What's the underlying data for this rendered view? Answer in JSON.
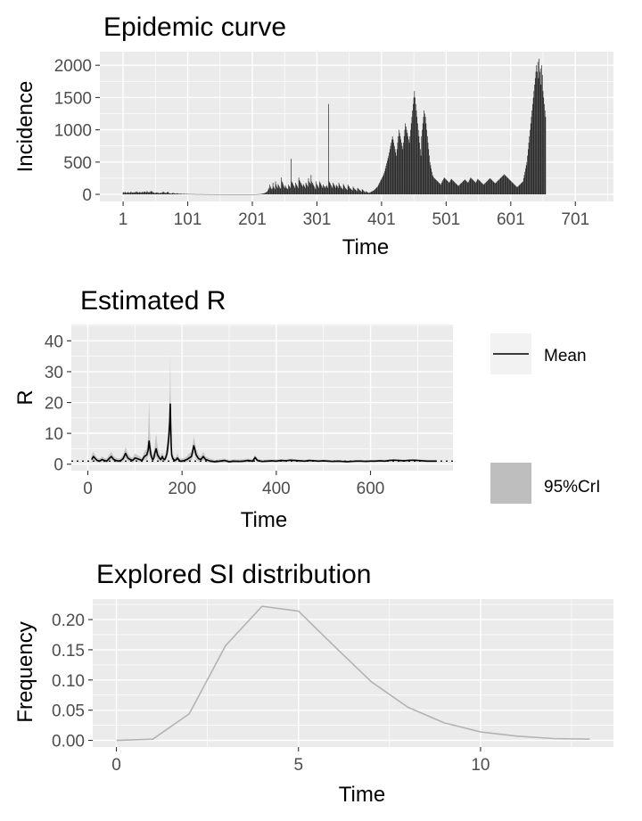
{
  "chart_data": [
    {
      "type": "bar",
      "title": "Epidemic curve",
      "xlabel": "Time",
      "ylabel": "Incidence",
      "xlim": [
        -35,
        760
      ],
      "ylim": [
        -110,
        2210
      ],
      "xticks": [
        1,
        101,
        201,
        301,
        401,
        501,
        601,
        701
      ],
      "xtick_labels": [
        "1",
        "101",
        "201",
        "301",
        "401",
        "501",
        "601",
        "701"
      ],
      "yticks": [
        0,
        500,
        1000,
        1500,
        2000
      ],
      "ytick_labels": [
        "0",
        "500",
        "1000",
        "1500",
        "2000"
      ],
      "grid": true,
      "bar_color": "#1a1a1a",
      "x_start": 1,
      "values": [
        30,
        35,
        25,
        40,
        30,
        20,
        25,
        35,
        30,
        28,
        22,
        30,
        40,
        35,
        30,
        25,
        30,
        28,
        35,
        30,
        40,
        45,
        35,
        30,
        28,
        32,
        38,
        30,
        25,
        35,
        40,
        30,
        35,
        45,
        40,
        35,
        30,
        50,
        40,
        35,
        30,
        35,
        40,
        45,
        55,
        40,
        35,
        30,
        25,
        20,
        22,
        25,
        30,
        28,
        25,
        20,
        18,
        22,
        25,
        20,
        25,
        30,
        45,
        35,
        30,
        25,
        20,
        25,
        30,
        40,
        35,
        20,
        18,
        15,
        12,
        15,
        18,
        20,
        22,
        18,
        15,
        12,
        10,
        15,
        18,
        12,
        10,
        8,
        10,
        12,
        10,
        8,
        6,
        8,
        10,
        8,
        6,
        5,
        6,
        8,
        6,
        5,
        4,
        5,
        6,
        5,
        4,
        3,
        4,
        5,
        4,
        3,
        2,
        3,
        4,
        3,
        2,
        2,
        3,
        4,
        3,
        2,
        2,
        2,
        3,
        2,
        2,
        1,
        2,
        2,
        3,
        2,
        1,
        1,
        2,
        1,
        2,
        1,
        1,
        1,
        2,
        1,
        1,
        0,
        1,
        1,
        0,
        1,
        0,
        1,
        0,
        0,
        1,
        0,
        1,
        0,
        0,
        0,
        1,
        0,
        0,
        0,
        1,
        0,
        0,
        0,
        0,
        0,
        0,
        1,
        0,
        0,
        0,
        0,
        0,
        0,
        0,
        0,
        0,
        0,
        1,
        0,
        0,
        0,
        0,
        0,
        0,
        1,
        0,
        0,
        0,
        0,
        0,
        1,
        0,
        0,
        0,
        0,
        0,
        0,
        1,
        0,
        0,
        0,
        1,
        1,
        1,
        2,
        2,
        3,
        3,
        4,
        5,
        6,
        8,
        10,
        12,
        14,
        16,
        20,
        24,
        30,
        35,
        45,
        60,
        80,
        100,
        150,
        120,
        100,
        80,
        90,
        180,
        120,
        100,
        80,
        200,
        150,
        120,
        100,
        160,
        140,
        120,
        100,
        90,
        260,
        200,
        180,
        150,
        120,
        100,
        140,
        120,
        100,
        90,
        80,
        150,
        130,
        120,
        100,
        550,
        200,
        180,
        160,
        140,
        120,
        100,
        180,
        160,
        140,
        120,
        100,
        260,
        220,
        200,
        180,
        160,
        140,
        120,
        160,
        140,
        120,
        100,
        180,
        160,
        140,
        120,
        250,
        200,
        180,
        160,
        300,
        200,
        180,
        160,
        140,
        120,
        100,
        80,
        200,
        160,
        140,
        120,
        100,
        200,
        180,
        160,
        140,
        120,
        100,
        150,
        130,
        120,
        100,
        120,
        140,
        120,
        100,
        1400,
        200,
        180,
        160,
        140,
        120,
        100,
        180,
        160,
        140,
        120,
        100,
        150,
        130,
        120,
        100,
        180,
        150,
        130,
        120,
        100,
        90,
        80,
        160,
        140,
        120,
        100,
        90,
        80,
        70,
        150,
        130,
        120,
        100,
        90,
        80,
        70,
        60,
        120,
        100,
        90,
        80,
        70,
        60,
        50,
        100,
        90,
        80,
        70,
        60,
        50,
        40,
        80,
        70,
        60,
        50,
        40,
        30,
        50,
        40,
        35,
        30,
        25,
        20,
        30,
        35,
        40,
        45,
        50,
        55,
        60,
        70,
        80,
        90,
        100,
        110,
        120,
        140,
        160,
        180,
        200,
        220,
        240,
        260,
        280,
        300,
        330,
        360,
        400,
        440,
        480,
        520,
        560,
        600,
        650,
        700,
        750,
        800,
        850,
        900,
        850,
        800,
        750,
        700,
        650,
        600,
        700,
        800,
        900,
        1000,
        950,
        900,
        850,
        800,
        750,
        700,
        800,
        900,
        1000,
        1100,
        1050,
        1000,
        950,
        900,
        850,
        800,
        900,
        1000,
        1100,
        1200,
        1300,
        1400,
        1500,
        1600,
        1500,
        1400,
        1300,
        1200,
        1100,
        1000,
        900,
        800,
        700,
        600,
        900,
        1000,
        1100,
        1200,
        1300,
        1250,
        1200,
        1100,
        1000,
        900,
        800,
        700,
        600,
        500,
        450,
        400,
        350,
        300,
        280,
        260,
        250,
        240,
        230,
        220,
        210,
        200,
        190,
        180,
        170,
        160,
        150,
        180,
        200,
        220,
        240,
        260,
        250,
        240,
        230,
        220,
        210,
        200,
        190,
        180,
        200,
        220,
        240,
        230,
        220,
        210,
        200,
        190,
        180,
        170,
        160,
        150,
        140,
        130,
        140,
        150,
        160,
        170,
        180,
        190,
        200,
        210,
        220,
        230,
        220,
        210,
        200,
        190,
        180,
        200,
        220,
        240,
        260,
        250,
        240,
        230,
        220,
        210,
        200,
        190,
        180,
        200,
        220,
        240,
        230,
        220,
        210,
        200,
        190,
        180,
        170,
        160,
        150,
        160,
        170,
        180,
        190,
        200,
        210,
        220,
        230,
        240,
        250,
        240,
        230,
        220,
        210,
        200,
        190,
        180,
        170,
        180,
        190,
        200,
        210,
        220,
        230,
        240,
        250,
        260,
        270,
        280,
        290,
        300,
        310,
        300,
        290,
        280,
        270,
        260,
        250,
        240,
        230,
        220,
        210,
        200,
        190,
        180,
        170,
        160,
        150,
        140,
        130,
        120,
        110,
        120,
        130,
        140,
        150,
        160,
        170,
        180,
        190,
        200,
        250,
        300,
        350,
        400,
        450,
        500,
        600,
        700,
        800,
        900,
        1000,
        1100,
        1200,
        1300,
        1400,
        1500,
        1600,
        1700,
        1800,
        1900,
        2000,
        1900,
        2050,
        1800,
        2100,
        1900,
        1950,
        1700,
        2000,
        1850,
        1600,
        1500,
        1400,
        1300,
        1200
      ],
      "annotations": []
    },
    {
      "type": "line",
      "title": "Estimated R",
      "xlabel": "Time",
      "ylabel": "R",
      "xlim": [
        -35,
        775
      ],
      "ylim": [
        -2.1,
        45.3
      ],
      "xticks": [
        0,
        200,
        400,
        600
      ],
      "xtick_labels": [
        "0",
        "200",
        "400",
        "600"
      ],
      "yticks": [
        0,
        10,
        20,
        30,
        40
      ],
      "ytick_labels": [
        "0",
        "10",
        "20",
        "30",
        "40"
      ],
      "grid": true,
      "reference_line_y": 1,
      "series": [
        {
          "name": "Mean",
          "color": "#000000",
          "x": [
            8,
            12,
            16,
            20,
            25,
            30,
            35,
            40,
            45,
            50,
            55,
            60,
            65,
            70,
            75,
            80,
            85,
            90,
            95,
            100,
            105,
            110,
            115,
            120,
            125,
            128,
            130,
            132,
            134,
            136,
            138,
            140,
            142,
            145,
            148,
            150,
            152,
            155,
            158,
            160,
            163,
            165,
            168,
            170,
            172,
            174,
            175,
            176,
            177,
            178,
            180,
            182,
            185,
            188,
            190,
            193,
            196,
            200,
            205,
            210,
            215,
            220,
            225,
            230,
            235,
            240,
            245,
            250,
            260,
            270,
            280,
            290,
            300,
            310,
            320,
            330,
            340,
            350,
            355,
            360,
            370,
            380,
            390,
            400,
            410,
            420,
            430,
            440,
            450,
            460,
            470,
            480,
            490,
            500,
            510,
            520,
            530,
            540,
            550,
            560,
            570,
            580,
            590,
            600,
            610,
            620,
            630,
            640,
            650,
            660,
            670,
            680,
            690,
            700,
            710,
            720,
            730,
            740
          ],
          "y": [
            1.5,
            2.5,
            1.8,
            1.2,
            1.0,
            1.5,
            1.2,
            1.0,
            1.8,
            2.5,
            1.5,
            1.2,
            1.0,
            1.2,
            1.8,
            3.5,
            2.0,
            1.5,
            1.2,
            2.0,
            1.8,
            1.5,
            1.2,
            2.5,
            3.0,
            4.5,
            7.5,
            5.0,
            3.0,
            2.0,
            1.5,
            2.0,
            3.5,
            5.0,
            3.0,
            2.5,
            2.0,
            1.5,
            2.5,
            1.8,
            1.5,
            2.0,
            3.5,
            6.0,
            9.0,
            14.0,
            19.5,
            12.0,
            6.0,
            3.0,
            2.0,
            1.5,
            1.2,
            1.5,
            2.0,
            1.5,
            1.0,
            1.0,
            1.2,
            1.5,
            2.0,
            2.5,
            6.0,
            3.0,
            1.8,
            1.5,
            2.5,
            1.5,
            1.0,
            0.8,
            1.0,
            1.2,
            0.8,
            1.0,
            0.9,
            1.0,
            1.2,
            1.0,
            2.2,
            1.2,
            0.9,
            1.0,
            1.1,
            1.0,
            1.2,
            1.1,
            1.3,
            1.2,
            1.1,
            1.0,
            1.2,
            1.1,
            1.0,
            1.1,
            1.0,
            0.9,
            1.0,
            0.9,
            0.8,
            0.9,
            1.0,
            1.0,
            0.9,
            1.0,
            1.0,
            1.1,
            1.0,
            1.2,
            1.3,
            1.2,
            1.1,
            1.2,
            1.3,
            1.2,
            1.1,
            1.0,
            1.0,
            1.0
          ],
          "ci_upper": [
            3.0,
            4.0,
            2.8,
            2.0,
            1.8,
            2.5,
            2.0,
            1.8,
            3.0,
            4.0,
            2.5,
            2.0,
            1.8,
            2.0,
            3.0,
            5.5,
            3.5,
            2.5,
            2.0,
            3.5,
            3.0,
            2.5,
            2.0,
            4.0,
            5.0,
            9.0,
            21.0,
            10.0,
            6.0,
            4.0,
            3.0,
            4.0,
            6.0,
            10.0,
            6.0,
            4.5,
            3.5,
            2.5,
            4.0,
            3.0,
            2.5,
            3.5,
            6.0,
            10.0,
            16.0,
            24.0,
            35.5,
            20.0,
            10.0,
            5.0,
            3.5,
            2.5,
            2.0,
            2.5,
            3.5,
            2.5,
            1.8,
            1.8,
            2.0,
            2.5,
            3.5,
            4.0,
            9.0,
            5.0,
            3.0,
            2.5,
            4.0,
            2.5,
            1.8,
            1.4,
            1.6,
            1.8,
            1.4,
            1.6,
            1.5,
            1.6,
            1.8,
            1.6,
            3.0,
            1.8,
            1.4,
            1.5,
            1.6,
            1.5,
            1.7,
            1.6,
            1.8,
            1.6,
            1.5,
            1.4,
            1.6,
            1.5,
            1.4,
            1.5,
            1.4,
            1.3,
            1.4,
            1.3,
            1.2,
            1.3,
            1.4,
            1.4,
            1.3,
            1.4,
            1.4,
            1.5,
            1.4,
            1.6,
            1.7,
            1.6,
            1.5,
            1.6,
            1.7,
            1.6,
            1.5,
            1.4,
            1.4,
            1.4
          ],
          "ci_lower": [
            0.5,
            1.2,
            0.9,
            0.6,
            0.5,
            0.8,
            0.6,
            0.5,
            0.9,
            1.3,
            0.8,
            0.6,
            0.5,
            0.6,
            0.9,
            2.0,
            1.0,
            0.8,
            0.6,
            1.0,
            0.9,
            0.8,
            0.6,
            1.3,
            1.5,
            2.5,
            3.5,
            2.5,
            1.5,
            1.0,
            0.8,
            1.0,
            1.8,
            2.5,
            1.5,
            1.2,
            1.0,
            0.8,
            1.2,
            0.9,
            0.8,
            1.0,
            1.8,
            3.0,
            4.5,
            7.0,
            9.5,
            6.0,
            3.0,
            1.5,
            1.0,
            0.8,
            0.6,
            0.8,
            1.0,
            0.8,
            0.5,
            0.5,
            0.6,
            0.8,
            1.0,
            1.2,
            3.5,
            1.5,
            0.9,
            0.8,
            1.3,
            0.8,
            0.5,
            0.4,
            0.5,
            0.6,
            0.4,
            0.5,
            0.5,
            0.5,
            0.7,
            0.5,
            1.5,
            0.7,
            0.5,
            0.6,
            0.7,
            0.6,
            0.8,
            0.7,
            0.9,
            0.8,
            0.7,
            0.7,
            0.8,
            0.8,
            0.7,
            0.8,
            0.7,
            0.6,
            0.7,
            0.6,
            0.5,
            0.6,
            0.7,
            0.7,
            0.6,
            0.7,
            0.7,
            0.8,
            0.7,
            0.9,
            1.0,
            0.9,
            0.8,
            0.9,
            1.0,
            0.9,
            0.8,
            0.7,
            0.7,
            0.7
          ]
        },
        {
          "name": "95%CrI",
          "color": "#bebebe",
          "values": []
        }
      ],
      "legend": {
        "position": "right",
        "entries": [
          {
            "label": "Mean",
            "kind": "line",
            "color": "#000000"
          },
          {
            "label": "95%CrI",
            "kind": "fill",
            "color": "#bebebe"
          }
        ]
      }
    },
    {
      "type": "line",
      "title": "Explored SI distribution",
      "xlabel": "Time",
      "ylabel": "Frequency",
      "xlim": [
        -0.65,
        13.65
      ],
      "ylim": [
        -0.011,
        0.234
      ],
      "xticks": [
        0,
        5,
        10
      ],
      "xtick_labels": [
        "0",
        "5",
        "10"
      ],
      "yticks": [
        0.0,
        0.05,
        0.1,
        0.15,
        0.2
      ],
      "ytick_labels": [
        "0.00",
        "0.05",
        "0.10",
        "0.15",
        "0.20"
      ],
      "grid": true,
      "series": [
        {
          "color": "#b3b3b3",
          "x": [
            0,
            1,
            2,
            3,
            4,
            5,
            6,
            7,
            8,
            9,
            10,
            11,
            12,
            13
          ],
          "y": [
            0.0,
            0.002,
            0.044,
            0.157,
            0.222,
            0.214,
            0.155,
            0.097,
            0.055,
            0.029,
            0.014,
            0.007,
            0.003,
            0.002
          ]
        }
      ]
    }
  ]
}
